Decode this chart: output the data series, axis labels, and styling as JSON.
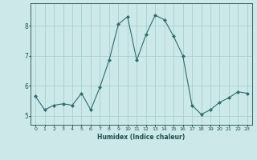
{
  "x": [
    0,
    1,
    2,
    3,
    4,
    5,
    6,
    7,
    8,
    9,
    10,
    11,
    12,
    13,
    14,
    15,
    16,
    17,
    18,
    19,
    20,
    21,
    22,
    23
  ],
  "y": [
    5.65,
    5.2,
    5.35,
    5.4,
    5.35,
    5.75,
    5.2,
    5.95,
    6.85,
    8.05,
    8.3,
    6.85,
    7.7,
    8.35,
    8.2,
    7.65,
    7.0,
    5.35,
    5.05,
    5.2,
    5.45,
    5.6,
    5.8,
    5.75
  ],
  "title": "",
  "xlabel": "Humidex (Indice chaleur)",
  "ylabel": "",
  "xlim": [
    -0.5,
    23.5
  ],
  "ylim": [
    4.7,
    8.75
  ],
  "yticks": [
    5,
    6,
    7,
    8
  ],
  "xticks": [
    0,
    1,
    2,
    3,
    4,
    5,
    6,
    7,
    8,
    9,
    10,
    11,
    12,
    13,
    14,
    15,
    16,
    17,
    18,
    19,
    20,
    21,
    22,
    23
  ],
  "line_color": "#2e6e6e",
  "marker_color": "#2e6e6e",
  "bg_color": "#cce8e8",
  "grid_color": "#9ecece",
  "tick_color": "#1a5050",
  "label_color": "#1a5050"
}
